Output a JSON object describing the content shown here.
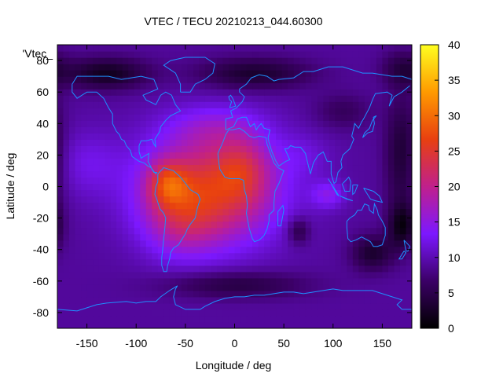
{
  "chart_data": {
    "type": "heatmap",
    "title": "VTEC / TECU 20210213_044.60300",
    "xlabel": "Longitude / deg",
    "ylabel": "Latitude / deg",
    "key_label": "'Vtec_",
    "xlim": [
      -180,
      180
    ],
    "ylim": [
      -90,
      90
    ],
    "x_ticks": [
      -150,
      -100,
      -50,
      0,
      50,
      100,
      150
    ],
    "y_ticks": [
      -80,
      -60,
      -40,
      -20,
      0,
      20,
      40,
      60,
      80
    ],
    "colorbar": {
      "range": [
        0,
        40
      ],
      "ticks": [
        0,
        5,
        10,
        15,
        20,
        25,
        30,
        35,
        40
      ],
      "stops": [
        "#000000",
        "#3b0066",
        "#7c18ff",
        "#c0208c",
        "#e84010",
        "#ff9a00",
        "#ffff20"
      ]
    },
    "field": {
      "base_tecu": 9,
      "features": [
        {
          "lon": -25,
          "lat": -2,
          "sigma_lon": 48,
          "sigma_lat": 24,
          "amp": 16
        },
        {
          "lon": -68,
          "lat": 2,
          "sigma_lon": 14,
          "sigma_lat": 10,
          "amp": 9
        },
        {
          "lon": 8,
          "lat": 12,
          "sigma_lon": 18,
          "sigma_lat": 14,
          "amp": 6
        },
        {
          "lon": -55,
          "lat": -22,
          "sigma_lon": 25,
          "sigma_lat": 16,
          "amp": 5
        },
        {
          "lon": -20,
          "lat": 38,
          "sigma_lon": 35,
          "sigma_lat": 10,
          "amp": 4
        },
        {
          "lon": -150,
          "lat": 15,
          "sigma_lon": 25,
          "sigma_lat": 15,
          "amp": 3
        },
        {
          "lon": 95,
          "lat": -5,
          "sigma_lon": 12,
          "sigma_lat": 6,
          "amp": 5
        },
        {
          "lon": 70,
          "lat": 20,
          "sigma_lon": 20,
          "sigma_lat": 10,
          "amp": 2
        },
        {
          "lon": -130,
          "lat": 72,
          "sigma_lon": 30,
          "sigma_lat": 7,
          "amp": -7
        },
        {
          "lon": 20,
          "lat": 72,
          "sigma_lon": 40,
          "sigma_lat": 7,
          "amp": -6
        },
        {
          "lon": 170,
          "lat": 20,
          "sigma_lon": 12,
          "sigma_lat": 25,
          "amp": -6
        },
        {
          "lon": 170,
          "lat": -25,
          "sigma_lon": 10,
          "sigma_lat": 10,
          "amp": -7
        },
        {
          "lon": 140,
          "lat": -42,
          "sigma_lon": 15,
          "sigma_lat": 8,
          "amp": -6
        },
        {
          "lon": 65,
          "lat": -28,
          "sigma_lon": 8,
          "sigma_lat": 6,
          "amp": -5
        },
        {
          "lon": 0,
          "lat": -62,
          "sigma_lon": 50,
          "sigma_lat": 6,
          "amp": -5
        },
        {
          "lon": 110,
          "lat": 48,
          "sigma_lon": 20,
          "sigma_lat": 8,
          "amp": -3
        },
        {
          "lon": 170,
          "lat": 75,
          "sigma_lon": 15,
          "sigma_lat": 8,
          "amp": -4
        }
      ]
    },
    "coastline_color": "#1e90ff"
  }
}
